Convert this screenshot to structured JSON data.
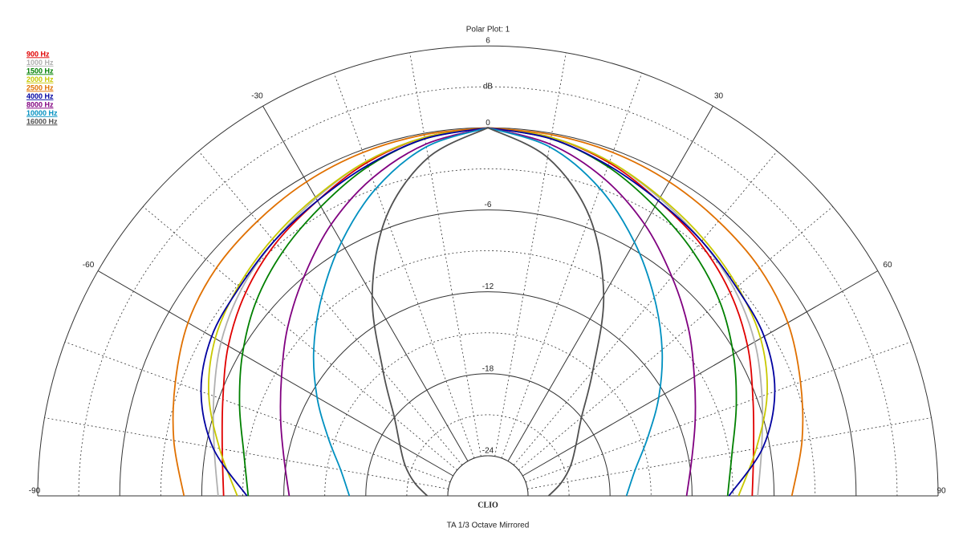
{
  "chart_data": {
    "type": "polar",
    "title": "Polar Plot: 1",
    "footer": "TA   1/3 Octave   Mirrored",
    "logo": "CLIO",
    "r_unit": "dB",
    "rlim": [
      -24,
      6
    ],
    "rticks": [
      6,
      0,
      -6,
      -12,
      -18,
      -24
    ],
    "thetalim": [
      -90,
      90
    ],
    "thetaticks": [
      -90,
      -60,
      -30,
      30,
      60,
      90
    ],
    "mirrored": true,
    "angles": [
      0,
      10,
      20,
      30,
      40,
      50,
      60,
      70,
      80,
      90
    ],
    "series": [
      {
        "name": "900 Hz",
        "color": "#e00000",
        "values": [
          0,
          -0.3,
          -1,
          -2,
          -2.8,
          -3.8,
          -5,
          -6.3,
          -7.2,
          -7.6
        ]
      },
      {
        "name": "1000 Hz",
        "color": "#b0b0b0",
        "values": [
          0,
          -0.3,
          -0.9,
          -1.8,
          -2.6,
          -3.4,
          -4.4,
          -5.6,
          -6.6,
          -7.2
        ]
      },
      {
        "name": "1500 Hz",
        "color": "#008000",
        "values": [
          0,
          -0.4,
          -1.3,
          -2.5,
          -3.6,
          -4.8,
          -6.2,
          -7.6,
          -8.8,
          -9.4
        ]
      },
      {
        "name": "2000 Hz",
        "color": "#c8c800",
        "values": [
          0,
          -0.3,
          -0.9,
          -1.7,
          -2.4,
          -3.1,
          -3.9,
          -5.2,
          -7,
          -8.6
        ]
      },
      {
        "name": "2500 Hz",
        "color": "#e07000",
        "values": [
          0,
          -0.1,
          -0.2,
          -0.4,
          -0.7,
          -1,
          -1.6,
          -2.6,
          -3.6,
          -4.7
        ]
      },
      {
        "name": "4000 Hz",
        "color": "#0000a0",
        "values": [
          0,
          -0.4,
          -1.2,
          -2,
          -2.6,
          -3.2,
          -3.6,
          -4.6,
          -6.5,
          -9.3
        ]
      },
      {
        "name": "8000 Hz",
        "color": "#800080",
        "values": [
          0,
          -0.8,
          -2.2,
          -4,
          -6,
          -7.8,
          -9.5,
          -10.8,
          -11.8,
          -12.4
        ]
      },
      {
        "name": "10000 Hz",
        "color": "#0090c0",
        "values": [
          0,
          -1,
          -3,
          -5.5,
          -8,
          -10.3,
          -12.5,
          -14.5,
          -16,
          -16.8
        ]
      },
      {
        "name": "16000 Hz",
        "color": "#505050",
        "values": [
          0,
          -1.8,
          -5.2,
          -10,
          -15,
          -18,
          -19.5,
          -20.5,
          -21.5,
          -22.5
        ]
      }
    ]
  }
}
